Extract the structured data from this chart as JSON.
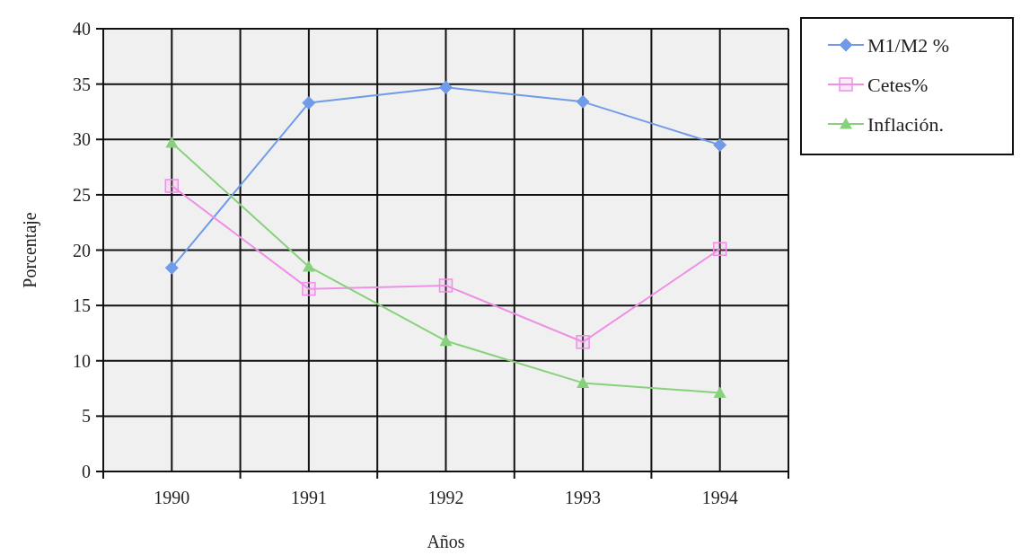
{
  "chart_data": {
    "type": "line",
    "xlabel": "Años",
    "ylabel": "Porcentaje",
    "categories": [
      "1990",
      "1991",
      "1992",
      "1993",
      "1994"
    ],
    "series": [
      {
        "name": "M1/M2 %",
        "color": "#6f9be8",
        "marker": "diamond",
        "values": [
          18.4,
          33.3,
          34.7,
          33.4,
          29.5
        ]
      },
      {
        "name": "Cetes%",
        "color": "#ee90e6",
        "marker": "square",
        "values": [
          25.8,
          16.5,
          16.8,
          11.7,
          20.1
        ]
      },
      {
        "name": "Inflación.",
        "color": "#88d17c",
        "marker": "triangle",
        "values": [
          29.7,
          18.5,
          11.8,
          8.0,
          7.1
        ]
      }
    ],
    "ylim": [
      0,
      40
    ],
    "yticks": [
      0,
      5,
      10,
      15,
      20,
      25,
      30,
      35,
      40
    ],
    "grid": true,
    "legend": "top right"
  }
}
